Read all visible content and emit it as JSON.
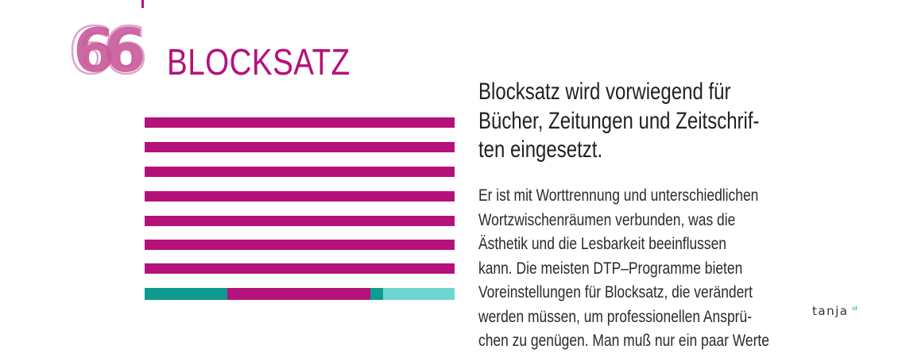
{
  "section": {
    "number": "66",
    "title": "BLOCKSATZ"
  },
  "lead_lines": [
    "Blocksatz wird vorwiegend für",
    "Bücher, Zeitungen und Zeitschrif-",
    "ten eingesetzt."
  ],
  "body_lines": [
    "Er ist mit Worttrennung und unterschiedlichen",
    "Wortzwischenräumen verbunden, was die",
    "Ästhetik und die Lesbarkeit beeinflussen",
    "kann. Die meisten DTP–Programme bieten",
    "Voreinstellungen für Blocksatz, die verändert",
    "werden müssen, um professionellen Ansprü-",
    "chen zu genügen. Man muß nur ein paar Werte"
  ],
  "logo": {
    "name": "tanja",
    "suffix": "id"
  },
  "colors": {
    "magenta": "#b5117a",
    "teal": "#0e9a8f",
    "light_teal": "#6fd6d2",
    "number_pink": "#c8599a"
  },
  "illustration": {
    "full_line_count": 7
  }
}
